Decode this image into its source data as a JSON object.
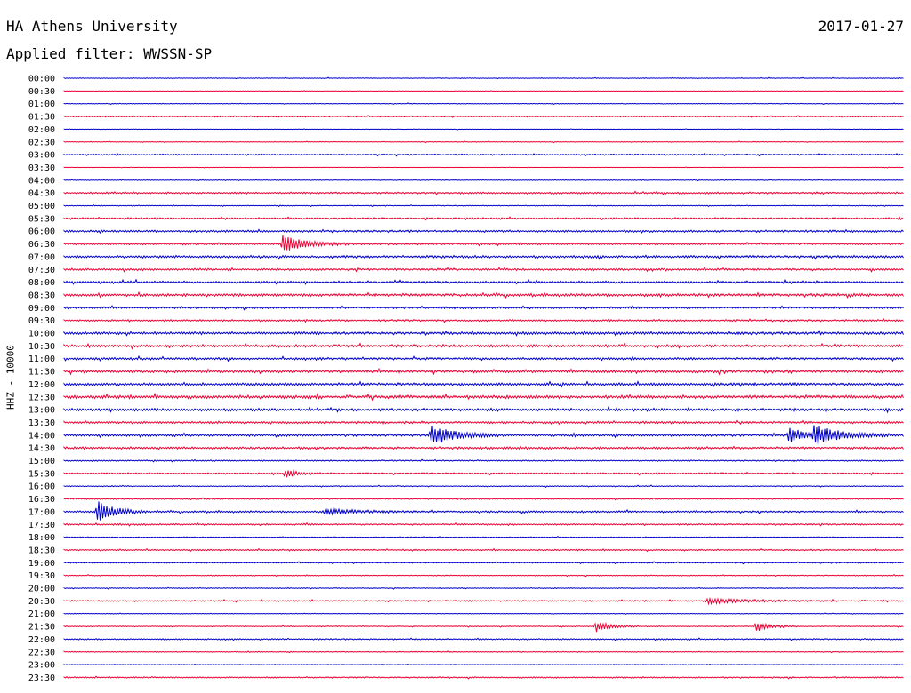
{
  "header": {
    "station": "HA Athens University",
    "date": "2017-01-27",
    "filter": "Applied filter: WWSSN-SP"
  },
  "chart_data": {
    "type": "line",
    "title": "HA Athens University",
    "subtitle": "Applied filter: WWSSN-SP",
    "ylabel": "HHZ - 10000",
    "rows": [
      "00:00",
      "00:30",
      "01:00",
      "01:30",
      "02:00",
      "02:30",
      "03:00",
      "03:30",
      "04:00",
      "04:30",
      "05:00",
      "05:30",
      "06:00",
      "06:30",
      "07:00",
      "07:30",
      "08:00",
      "08:30",
      "09:00",
      "09:30",
      "10:00",
      "10:30",
      "11:00",
      "11:30",
      "12:00",
      "12:30",
      "13:00",
      "13:30",
      "14:00",
      "14:30",
      "15:00",
      "15:30",
      "16:00",
      "16:30",
      "17:00",
      "17:30",
      "18:00",
      "18:30",
      "19:00",
      "19:30",
      "20:00",
      "20:30",
      "21:00",
      "21:30",
      "22:00",
      "22:30",
      "23:00",
      "23:30"
    ],
    "x_unit": "minutes",
    "xlim": [
      0,
      30
    ],
    "colors": [
      "#0000cc",
      "#ee0033"
    ],
    "noise_level": [
      0.3,
      0.2,
      0.3,
      0.5,
      0.2,
      0.3,
      0.6,
      0.2,
      0.3,
      0.8,
      0.4,
      0.8,
      0.9,
      0.9,
      1.1,
      0.9,
      1.0,
      1.2,
      0.9,
      0.8,
      1.2,
      1.2,
      1.0,
      1.2,
      1.2,
      1.4,
      1.2,
      1.0,
      1.1,
      1.0,
      0.6,
      0.7,
      0.4,
      0.5,
      0.8,
      0.7,
      0.4,
      0.6,
      0.5,
      0.4,
      0.4,
      0.6,
      0.3,
      0.4,
      0.6,
      0.4,
      0.3,
      0.6
    ],
    "events": [
      {
        "row": "06:30",
        "minute": 7.8,
        "amplitude": 10,
        "duration": 0.8
      },
      {
        "row": "14:00",
        "minute": 13.1,
        "amplitude": 12,
        "duration": 0.8
      },
      {
        "row": "14:00",
        "minute": 25.9,
        "amplitude": 9,
        "duration": 0.5
      },
      {
        "row": "14:00",
        "minute": 26.8,
        "amplitude": 11,
        "duration": 0.9
      },
      {
        "row": "15:30",
        "minute": 7.9,
        "amplitude": 5,
        "duration": 0.4
      },
      {
        "row": "17:00",
        "minute": 1.2,
        "amplitude": 12,
        "duration": 0.6
      },
      {
        "row": "17:00",
        "minute": 9.3,
        "amplitude": 3,
        "duration": 1.2
      },
      {
        "row": "20:30",
        "minute": 23.0,
        "amplitude": 3,
        "duration": 1.5
      },
      {
        "row": "21:30",
        "minute": 19.0,
        "amplitude": 6,
        "duration": 0.5
      },
      {
        "row": "21:30",
        "minute": 24.7,
        "amplitude": 6,
        "duration": 0.5
      }
    ]
  }
}
